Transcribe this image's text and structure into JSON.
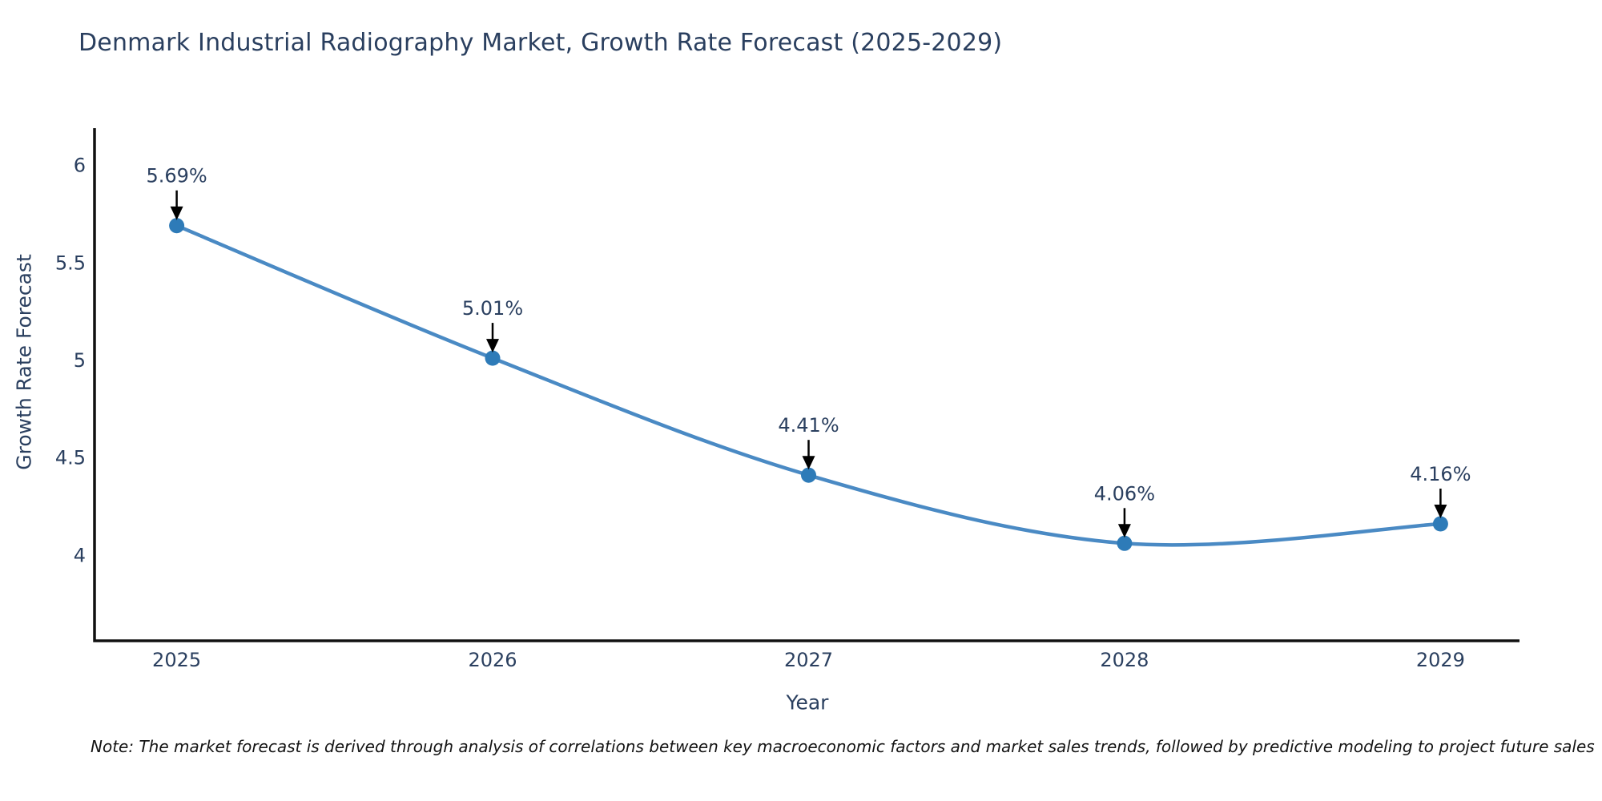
{
  "note": "Note: The market forecast is derived through analysis of correlations between key macroeconomic factors and market sales trends, followed by predictive modeling to project future sales",
  "chart_data": {
    "type": "line",
    "title": "Denmark Industrial Radiography Market, Growth Rate Forecast (2025-2029)",
    "categories": [
      "2025",
      "2026",
      "2027",
      "2028",
      "2029"
    ],
    "values": [
      5.69,
      5.01,
      4.41,
      4.06,
      4.16
    ],
    "point_labels": [
      "5.69%",
      "5.01%",
      "4.41%",
      "4.06%",
      "4.16%"
    ],
    "xlabel": "Year",
    "ylabel": "Growth Rate Forecast",
    "y_ticks": [
      4,
      4.5,
      5,
      5.5,
      6
    ],
    "ylim": [
      3.56,
      6.19
    ],
    "xlim": [
      -0.26,
      4.25
    ],
    "grid": false,
    "legend": "none",
    "line_shape": "spline",
    "colors": {
      "line": "#4a8ac4",
      "marker": "#2e7bb8",
      "text": "#2a3f5f",
      "axis": "#111111",
      "annotation_arrow": "#000000",
      "background": "#ffffff"
    }
  }
}
